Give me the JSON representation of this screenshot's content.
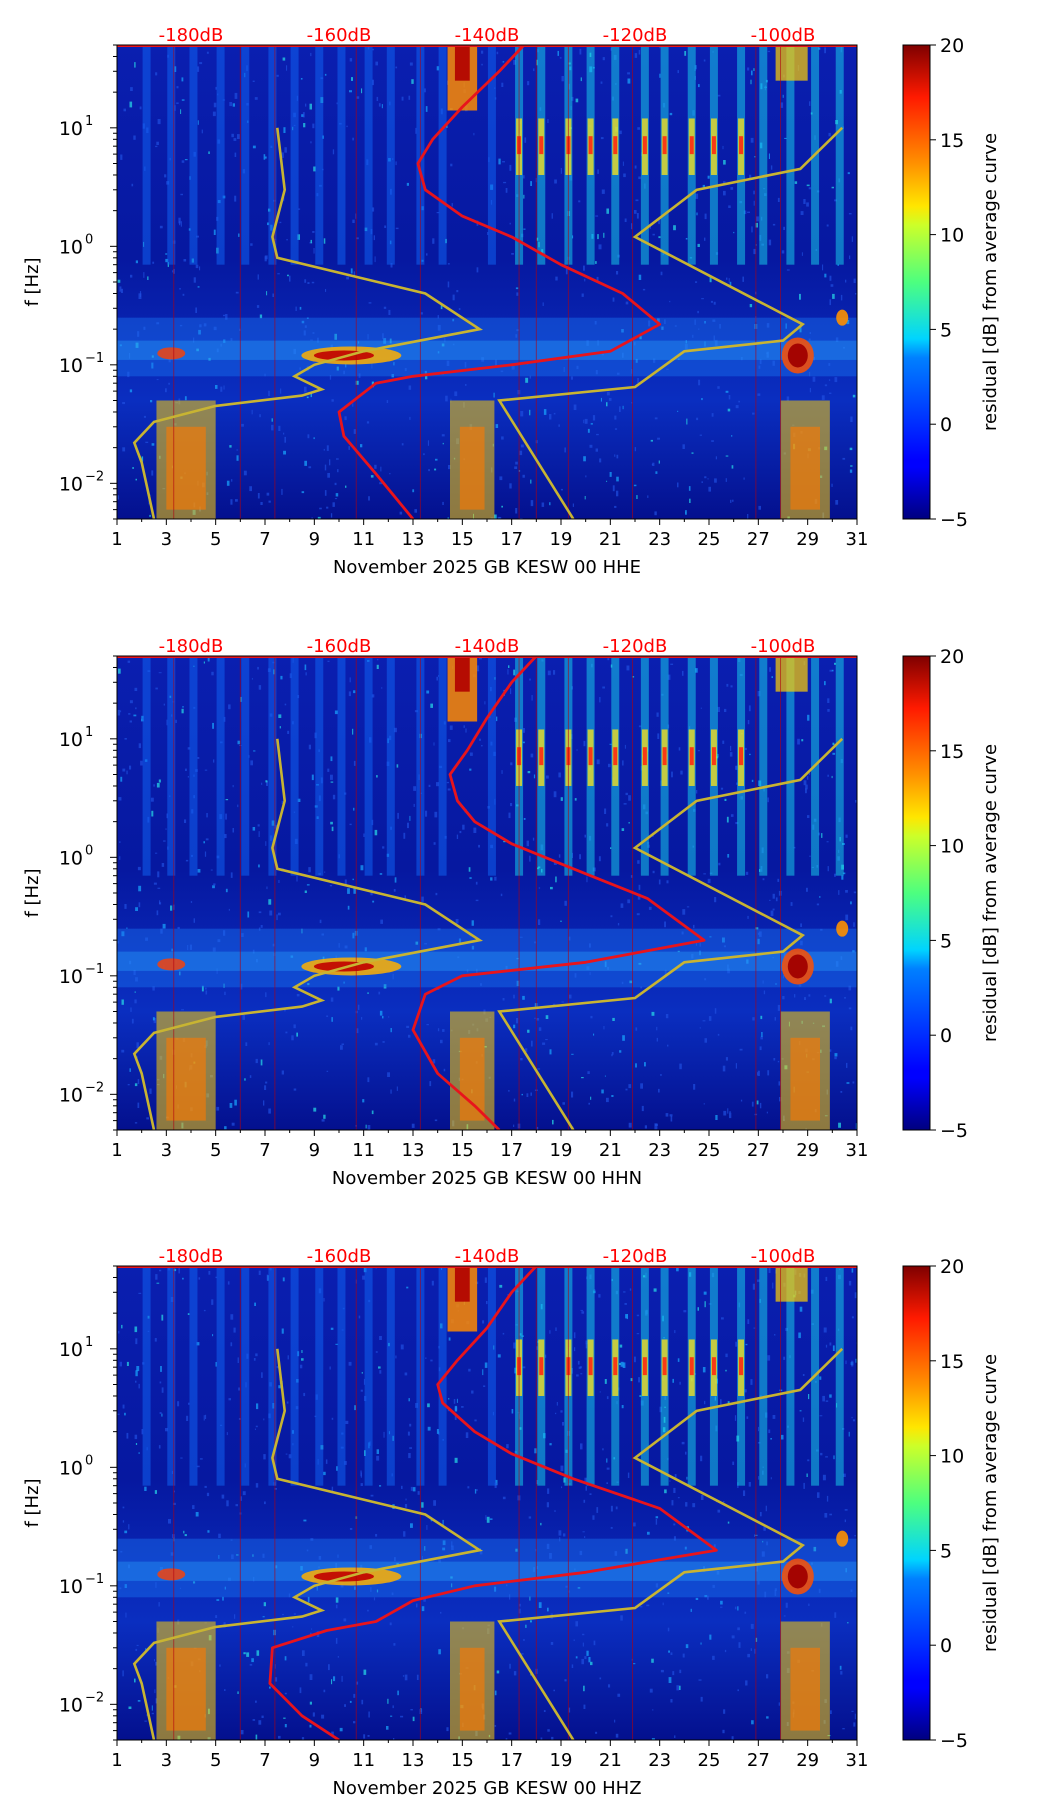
{
  "colors": {
    "red_curve": "#e8141c",
    "yellow_curve": "#c8b432",
    "top_label": "#ff0000",
    "background": "#00008c"
  },
  "chart_data": [
    {
      "type": "heatmap",
      "panel": "HHE",
      "xlabel": "November 2025 GB KESW 00 HHE",
      "ylabel": "f [Hz]",
      "xlim": [
        1,
        31
      ],
      "ylim": [
        0.005,
        50
      ],
      "x_ticks": [
        "1",
        "3",
        "5",
        "7",
        "9",
        "11",
        "13",
        "15",
        "17",
        "19",
        "21",
        "23",
        "25",
        "27",
        "29",
        "31"
      ],
      "y_ticks": [
        {
          "value": 0.01,
          "base": "10",
          "exp": "−2"
        },
        {
          "value": 0.1,
          "base": "10",
          "exp": "−1"
        },
        {
          "value": 1,
          "base": "10",
          "exp": "0"
        },
        {
          "value": 10,
          "base": "10",
          "exp": "1"
        }
      ],
      "top_labels": [
        {
          "x": 4.0,
          "text": "-180dB"
        },
        {
          "x": 10.0,
          "text": "-160dB"
        },
        {
          "x": 16.0,
          "text": "-140dB"
        },
        {
          "x": 22.0,
          "text": "-120dB"
        },
        {
          "x": 28.0,
          "text": "-100dB"
        }
      ],
      "colorbar": {
        "label": "residual [dB] from average curve",
        "range": [
          -5,
          20
        ],
        "ticks": [
          "−5",
          "0",
          "5",
          "10",
          "15",
          "20"
        ]
      },
      "red_curve": [
        [
          13.0,
          0.005
        ],
        [
          11.5,
          0.012
        ],
        [
          10.2,
          0.025
        ],
        [
          10.0,
          0.04
        ],
        [
          11.5,
          0.07
        ],
        [
          13.0,
          0.08
        ],
        [
          17.0,
          0.1
        ],
        [
          21.0,
          0.13
        ],
        [
          23.0,
          0.22
        ],
        [
          21.5,
          0.4
        ],
        [
          19.0,
          0.7
        ],
        [
          17.0,
          1.2
        ],
        [
          15.0,
          1.8
        ],
        [
          13.5,
          3.0
        ],
        [
          13.2,
          5.0
        ],
        [
          13.8,
          8.0
        ],
        [
          15.0,
          15.0
        ],
        [
          16.5,
          30.0
        ],
        [
          17.5,
          50.0
        ]
      ],
      "yellow_curve": [
        [
          2.5,
          0.005
        ],
        [
          2.0,
          0.015
        ],
        [
          1.7,
          0.022
        ],
        [
          2.5,
          0.033
        ],
        [
          5.0,
          0.045
        ],
        [
          8.5,
          0.055
        ],
        [
          9.3,
          0.062
        ],
        [
          8.2,
          0.08
        ],
        [
          9.0,
          0.1
        ],
        [
          11.0,
          0.13
        ],
        [
          15.7,
          0.2
        ],
        [
          13.5,
          0.4
        ],
        [
          7.5,
          0.8
        ],
        [
          7.3,
          1.2
        ],
        [
          7.8,
          3.0
        ],
        [
          7.5,
          10.0
        ]
      ],
      "yellow_curve_right": [
        [
          19.5,
          0.005
        ],
        [
          16.5,
          0.05
        ],
        [
          22.0,
          0.065
        ],
        [
          24.0,
          0.13
        ],
        [
          28.0,
          0.16
        ],
        [
          28.8,
          0.22
        ],
        [
          22.0,
          1.2
        ],
        [
          24.5,
          3.0
        ],
        [
          28.7,
          4.5
        ],
        [
          30.4,
          10.0
        ]
      ]
    },
    {
      "type": "heatmap",
      "panel": "HHN",
      "xlabel": "November 2025 GB KESW 00 HHN",
      "ylabel": "f [Hz]",
      "xlim": [
        1,
        31
      ],
      "ylim": [
        0.005,
        50
      ],
      "x_ticks": [
        "1",
        "3",
        "5",
        "7",
        "9",
        "11",
        "13",
        "15",
        "17",
        "19",
        "21",
        "23",
        "25",
        "27",
        "29",
        "31"
      ],
      "y_ticks": [
        {
          "value": 0.01,
          "base": "10",
          "exp": "−2"
        },
        {
          "value": 0.1,
          "base": "10",
          "exp": "−1"
        },
        {
          "value": 1,
          "base": "10",
          "exp": "0"
        },
        {
          "value": 10,
          "base": "10",
          "exp": "1"
        }
      ],
      "top_labels": [
        {
          "x": 4.0,
          "text": "-180dB"
        },
        {
          "x": 10.0,
          "text": "-160dB"
        },
        {
          "x": 16.0,
          "text": "-140dB"
        },
        {
          "x": 22.0,
          "text": "-120dB"
        },
        {
          "x": 28.0,
          "text": "-100dB"
        }
      ],
      "colorbar": {
        "label": "residual [dB] from average curve",
        "range": [
          -5,
          20
        ],
        "ticks": [
          "−5",
          "0",
          "5",
          "10",
          "15",
          "20"
        ]
      },
      "red_curve": [
        [
          16.5,
          0.005
        ],
        [
          15.5,
          0.008
        ],
        [
          14.0,
          0.015
        ],
        [
          13.0,
          0.035
        ],
        [
          13.5,
          0.07
        ],
        [
          15.0,
          0.1
        ],
        [
          20.0,
          0.13
        ],
        [
          24.8,
          0.2
        ],
        [
          22.5,
          0.45
        ],
        [
          19.5,
          0.8
        ],
        [
          17.0,
          1.3
        ],
        [
          15.5,
          2.0
        ],
        [
          14.8,
          3.0
        ],
        [
          14.5,
          5.0
        ],
        [
          15.2,
          8.0
        ],
        [
          16.0,
          15.0
        ],
        [
          17.0,
          30.0
        ],
        [
          18.0,
          50.0
        ]
      ],
      "yellow_curve": [
        [
          2.5,
          0.005
        ],
        [
          2.0,
          0.015
        ],
        [
          1.7,
          0.022
        ],
        [
          2.5,
          0.033
        ],
        [
          5.0,
          0.045
        ],
        [
          8.5,
          0.055
        ],
        [
          9.3,
          0.062
        ],
        [
          8.2,
          0.08
        ],
        [
          9.0,
          0.1
        ],
        [
          11.0,
          0.13
        ],
        [
          15.7,
          0.2
        ],
        [
          13.5,
          0.4
        ],
        [
          7.5,
          0.8
        ],
        [
          7.3,
          1.2
        ],
        [
          7.8,
          3.0
        ],
        [
          7.5,
          10.0
        ]
      ],
      "yellow_curve_right": [
        [
          19.5,
          0.005
        ],
        [
          16.5,
          0.05
        ],
        [
          22.0,
          0.065
        ],
        [
          24.0,
          0.13
        ],
        [
          28.0,
          0.16
        ],
        [
          28.8,
          0.22
        ],
        [
          22.0,
          1.2
        ],
        [
          24.5,
          3.0
        ],
        [
          28.7,
          4.5
        ],
        [
          30.4,
          10.0
        ]
      ]
    },
    {
      "type": "heatmap",
      "panel": "HHZ",
      "xlabel": "November 2025 GB KESW 00 HHZ",
      "ylabel": "f [Hz]",
      "xlim": [
        1,
        31
      ],
      "ylim": [
        0.005,
        50
      ],
      "x_ticks": [
        "1",
        "3",
        "5",
        "7",
        "9",
        "11",
        "13",
        "15",
        "17",
        "19",
        "21",
        "23",
        "25",
        "27",
        "29",
        "31"
      ],
      "y_ticks": [
        {
          "value": 0.01,
          "base": "10",
          "exp": "−2"
        },
        {
          "value": 0.1,
          "base": "10",
          "exp": "−1"
        },
        {
          "value": 1,
          "base": "10",
          "exp": "0"
        },
        {
          "value": 10,
          "base": "10",
          "exp": "1"
        }
      ],
      "top_labels": [
        {
          "x": 4.0,
          "text": "-180dB"
        },
        {
          "x": 10.0,
          "text": "-160dB"
        },
        {
          "x": 16.0,
          "text": "-140dB"
        },
        {
          "x": 22.0,
          "text": "-120dB"
        },
        {
          "x": 28.0,
          "text": "-100dB"
        }
      ],
      "colorbar": {
        "label": "residual [dB] from average curve",
        "range": [
          -5,
          20
        ],
        "ticks": [
          "−5",
          "0",
          "5",
          "10",
          "15",
          "20"
        ]
      },
      "red_curve": [
        [
          10.0,
          0.005
        ],
        [
          8.5,
          0.008
        ],
        [
          7.2,
          0.015
        ],
        [
          7.3,
          0.03
        ],
        [
          9.5,
          0.042
        ],
        [
          11.5,
          0.05
        ],
        [
          13.0,
          0.075
        ],
        [
          15.5,
          0.1
        ],
        [
          20.0,
          0.13
        ],
        [
          25.3,
          0.2
        ],
        [
          23.0,
          0.45
        ],
        [
          19.5,
          0.8
        ],
        [
          17.0,
          1.3
        ],
        [
          15.5,
          2.0
        ],
        [
          14.2,
          3.5
        ],
        [
          14.0,
          5.0
        ],
        [
          14.8,
          8.0
        ],
        [
          16.0,
          15.0
        ],
        [
          17.0,
          30.0
        ],
        [
          18.0,
          50.0
        ]
      ],
      "yellow_curve": [
        [
          2.5,
          0.005
        ],
        [
          2.0,
          0.015
        ],
        [
          1.7,
          0.022
        ],
        [
          2.5,
          0.033
        ],
        [
          5.0,
          0.045
        ],
        [
          8.5,
          0.055
        ],
        [
          9.3,
          0.062
        ],
        [
          8.2,
          0.08
        ],
        [
          9.0,
          0.1
        ],
        [
          11.0,
          0.13
        ],
        [
          15.7,
          0.2
        ],
        [
          13.5,
          0.4
        ],
        [
          7.5,
          0.8
        ],
        [
          7.3,
          1.2
        ],
        [
          7.8,
          3.0
        ],
        [
          7.5,
          10.0
        ]
      ],
      "yellow_curve_right": [
        [
          19.5,
          0.005
        ],
        [
          16.5,
          0.05
        ],
        [
          22.0,
          0.065
        ],
        [
          24.0,
          0.13
        ],
        [
          28.0,
          0.16
        ],
        [
          28.8,
          0.22
        ],
        [
          22.0,
          1.2
        ],
        [
          24.5,
          3.0
        ],
        [
          28.7,
          4.5
        ],
        [
          30.4,
          10.0
        ]
      ]
    }
  ]
}
